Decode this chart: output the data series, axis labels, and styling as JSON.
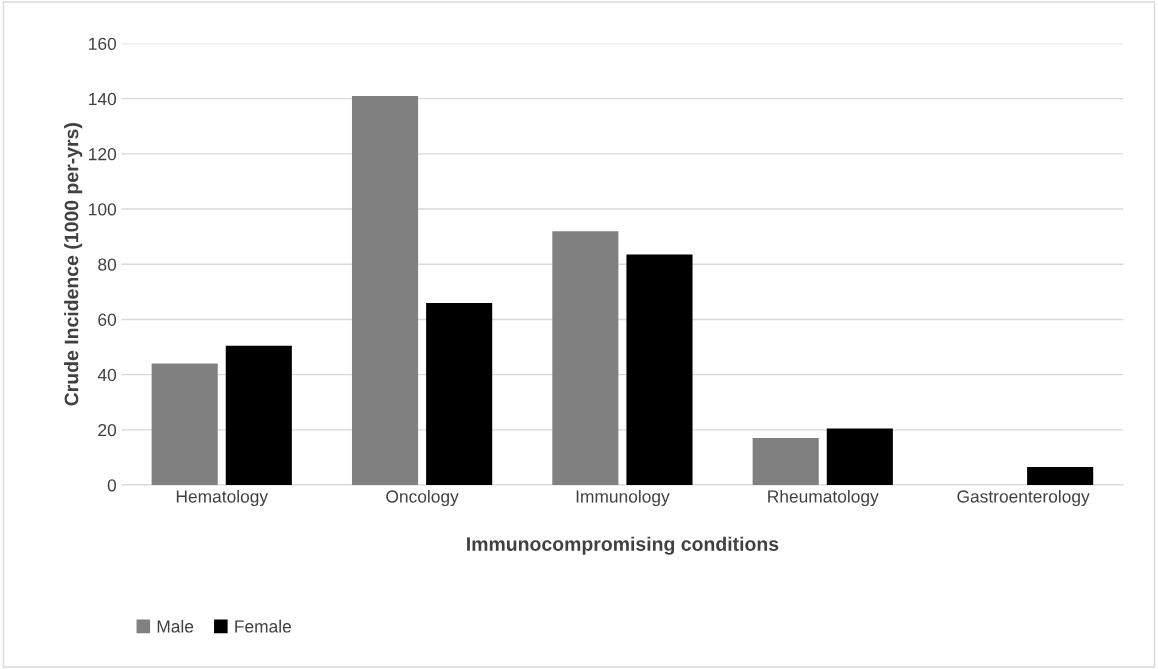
{
  "chart_data": {
    "type": "bar",
    "xlabel": "Immunocompromising conditions",
    "ylabel": "Crude Incidence (1000 per-yrs)",
    "categories": [
      "Hematology",
      "Oncology",
      "Immunology",
      "Rheumatology",
      "Gastroenterology"
    ],
    "series": [
      {
        "name": "Male",
        "color": "#808080",
        "values": [
          44,
          141,
          92,
          17,
          0
        ]
      },
      {
        "name": "Female",
        "color": "#000000",
        "values": [
          50.5,
          66,
          83.5,
          20.5,
          6.5
        ]
      }
    ],
    "ylim": [
      0,
      160
    ],
    "yticks": [
      0,
      20,
      40,
      60,
      80,
      100,
      120,
      140,
      160
    ],
    "grid": "y",
    "legend": "bottom left"
  }
}
